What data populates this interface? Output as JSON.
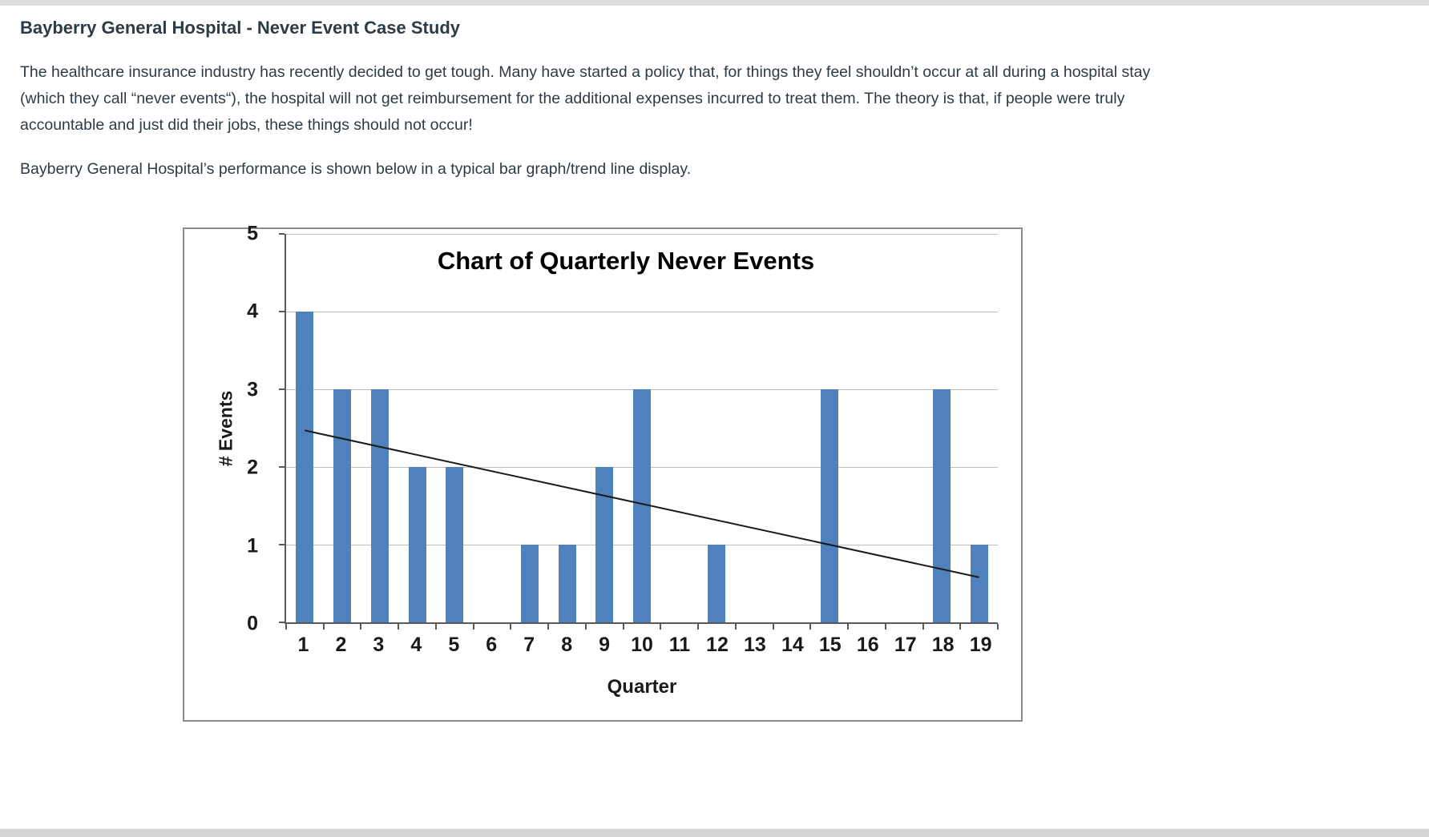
{
  "page": {
    "title": "Bayberry General Hospital - Never Event Case Study",
    "paragraph1": "The healthcare insurance industry has recently decided to get tough. Many have started a policy that, for things they feel shouldn’t occur at all during a hospital stay (which they call “never events“), the hospital will not get reimbursement for the additional expenses incurred to treat them. The theory is that, if people were truly accountable and just did their jobs, these things should not occur!",
    "paragraph2": "Bayberry General Hospital’s performance is shown below in a typical bar graph/trend line display."
  },
  "chart_data": {
    "type": "bar",
    "title": "Chart of Quarterly Never Events",
    "xlabel": "Quarter",
    "ylabel": "# Events",
    "categories": [
      "1",
      "2",
      "3",
      "4",
      "5",
      "6",
      "7",
      "8",
      "9",
      "10",
      "11",
      "12",
      "13",
      "14",
      "15",
      "16",
      "17",
      "18",
      "19"
    ],
    "values": [
      4,
      3,
      3,
      2,
      2,
      0,
      1,
      1,
      2,
      3,
      0,
      1,
      0,
      0,
      3,
      0,
      0,
      3,
      1
    ],
    "ylim": [
      0,
      5
    ],
    "yticks": [
      0,
      1,
      2,
      3,
      4,
      5
    ],
    "grid": true,
    "legend": "none",
    "bar_color": "#4f81bd",
    "gridline_color": "#bfbfbf",
    "axis_color": "#595959",
    "trend_line": {
      "type": "linear",
      "start_value": 2.47,
      "end_value": 0.58,
      "color": "#1a1a1a"
    }
  }
}
